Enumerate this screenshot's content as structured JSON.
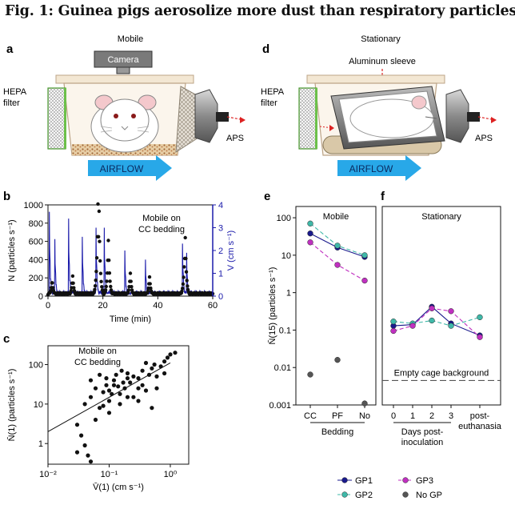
{
  "figure": {
    "title": "Fig. 1: Guinea pigs aerosolize more dust than respiratory particles."
  },
  "panel_a": {
    "letter": "a",
    "caption": "Mobile",
    "camera_label": "Camera",
    "filter_label_1": "HEPA",
    "filter_label_2": "filter",
    "aps_label": "APS",
    "airflow_label": "AIRFLOW"
  },
  "panel_d": {
    "letter": "d",
    "caption": "Stationary",
    "sleeve_label": "Aluminum sleeve",
    "filter_label_1": "HEPA",
    "filter_label_2": "filter",
    "aps_label": "APS",
    "airflow_label": "AIRFLOW"
  },
  "colors": {
    "black": "#111111",
    "blue": "#1a1aaa",
    "gp1": "#1a1a8c",
    "gp2": "#3fb8a8",
    "gp3": "#c030c0",
    "nogp": "#555555",
    "airflow": "#28a8e8",
    "hepa": "#6cc04a"
  },
  "chart_data": [
    {
      "panel": "b",
      "type": "line",
      "annotation_1": "Mobile on",
      "annotation_2": "CC bedding",
      "xlabel": "Time (min)",
      "ylabel_left": "N (particles s⁻¹)",
      "ylabel_right": "V (cm s⁻¹)",
      "xlim": [
        0,
        60
      ],
      "ylim_left": [
        0,
        1000
      ],
      "ylim_right": [
        0,
        4
      ],
      "x_ticks": [
        "0",
        "20",
        "40",
        "60"
      ],
      "y_ticks_left": [
        "0",
        "200",
        "400",
        "600",
        "800",
        "1000"
      ],
      "y_ticks_right": [
        "0",
        "1",
        "2",
        "3",
        "4"
      ],
      "series": [
        {
          "name": "N",
          "axis": "left",
          "color": "#111111",
          "peaks": [
            {
              "t": 18.2,
              "v": 1010
            },
            {
              "t": 18.6,
              "v": 930
            },
            {
              "t": 22.0,
              "v": 610
            },
            {
              "t": 1.5,
              "v": 180
            },
            {
              "t": 9.0,
              "v": 220
            },
            {
              "t": 30.0,
              "v": 250
            },
            {
              "t": 37.0,
              "v": 210
            },
            {
              "t": 50.0,
              "v": 640
            },
            {
              "t": 49.6,
              "v": 320
            }
          ]
        },
        {
          "name": "V",
          "axis": "right",
          "color": "#1a1aaa",
          "peaks": [
            {
              "t": 0.5,
              "v": 3.7
            },
            {
              "t": 2.5,
              "v": 2.5
            },
            {
              "t": 7.5,
              "v": 3.4
            },
            {
              "t": 12.5,
              "v": 2.6
            },
            {
              "t": 17.5,
              "v": 3.0
            },
            {
              "t": 20.5,
              "v": 3.0
            },
            {
              "t": 28.0,
              "v": 2.0
            },
            {
              "t": 35.5,
              "v": 1.6
            },
            {
              "t": 49.0,
              "v": 2.3
            },
            {
              "t": 50.5,
              "v": 1.9
            }
          ]
        }
      ]
    },
    {
      "panel": "c",
      "type": "scatter",
      "annotation_1": "Mobile on",
      "annotation_2": "CC bedding",
      "xlabel": "V̄(1) (cm s⁻¹)",
      "ylabel": "N̄(1) (particles s⁻¹)",
      "xscale": "log",
      "yscale": "log",
      "xlim": [
        0.01,
        2
      ],
      "ylim": [
        0.3,
        300
      ],
      "x_ticks": [
        "10⁻²",
        "10⁻¹",
        "10⁰"
      ],
      "y_ticks": [
        "1",
        "10",
        "100"
      ],
      "points": [
        [
          0.03,
          0.6
        ],
        [
          0.04,
          0.9
        ],
        [
          0.05,
          0.35
        ],
        [
          0.045,
          0.5
        ],
        [
          0.03,
          3
        ],
        [
          0.035,
          1.6
        ],
        [
          0.04,
          10
        ],
        [
          0.06,
          25
        ],
        [
          0.05,
          15
        ],
        [
          0.07,
          8
        ],
        [
          0.08,
          20
        ],
        [
          0.09,
          30
        ],
        [
          0.1,
          12
        ],
        [
          0.12,
          40
        ],
        [
          0.15,
          18
        ],
        [
          0.13,
          55
        ],
        [
          0.18,
          25
        ],
        [
          0.2,
          60
        ],
        [
          0.22,
          35
        ],
        [
          0.25,
          15
        ],
        [
          0.3,
          45
        ],
        [
          0.35,
          70
        ],
        [
          0.4,
          22
        ],
        [
          0.5,
          80
        ],
        [
          0.6,
          50
        ],
        [
          0.7,
          90
        ],
        [
          0.8,
          120
        ],
        [
          1.0,
          180
        ],
        [
          1.2,
          200
        ],
        [
          0.9,
          150
        ],
        [
          0.06,
          4
        ],
        [
          0.08,
          9
        ],
        [
          0.1,
          6
        ],
        [
          0.15,
          10
        ],
        [
          0.3,
          12
        ],
        [
          0.5,
          8
        ],
        [
          0.25,
          50
        ],
        [
          0.2,
          15
        ],
        [
          0.12,
          30
        ],
        [
          0.09,
          45
        ],
        [
          0.17,
          35
        ],
        [
          0.35,
          30
        ],
        [
          0.45,
          55
        ],
        [
          0.55,
          100
        ],
        [
          0.4,
          110
        ],
        [
          0.07,
          55
        ],
        [
          0.05,
          40
        ],
        [
          0.6,
          25
        ],
        [
          0.8,
          60
        ],
        [
          0.3,
          25
        ],
        [
          0.1,
          22
        ],
        [
          0.14,
          28
        ],
        [
          0.2,
          45
        ],
        [
          0.11,
          18
        ],
        [
          0.16,
          70
        ]
      ],
      "fit": {
        "x": [
          0.01,
          1.0
        ],
        "y": [
          2,
          110
        ]
      }
    },
    {
      "panel": "e",
      "type": "line",
      "title": "Mobile",
      "ylabel": "N̄(15) (particles s⁻¹)",
      "yscale": "log",
      "ylim": [
        0.001,
        200
      ],
      "y_ticks": [
        "0.001",
        "0.01",
        "0.1",
        "1",
        "10",
        "100"
      ],
      "categories": [
        "CC",
        "PF",
        "No"
      ],
      "group_label": "Bedding",
      "series": [
        {
          "name": "GP1",
          "values": [
            38,
            16,
            9
          ]
        },
        {
          "name": "GP2",
          "values": [
            70,
            18,
            10
          ]
        },
        {
          "name": "GP3",
          "values": [
            22,
            5.5,
            2.1
          ]
        },
        {
          "name": "No GP",
          "values": [
            0.0065,
            0.016,
            0.0011
          ]
        }
      ]
    },
    {
      "panel": "f",
      "type": "line",
      "title": "Stationary",
      "yscale": "log",
      "ylim": [
        0.001,
        200
      ],
      "categories": [
        "0",
        "1",
        "2",
        "3",
        "post-euthanasia"
      ],
      "post_label_1": "post-",
      "post_label_2": "euthanasia",
      "group_label_1": "Days post-",
      "group_label_2": "inoculation",
      "background_label": "Empty cage background",
      "background_value": 0.0045,
      "series": [
        {
          "name": "GP1",
          "values": [
            0.13,
            0.14,
            0.42,
            0.15,
            0.072
          ]
        },
        {
          "name": "GP2",
          "values": [
            0.17,
            0.15,
            0.18,
            0.13,
            0.22
          ]
        },
        {
          "name": "GP3",
          "values": [
            0.095,
            0.13,
            0.38,
            0.32,
            0.065
          ]
        }
      ]
    }
  ],
  "legend": {
    "items": [
      {
        "name": "GP1"
      },
      {
        "name": "GP2"
      },
      {
        "name": "GP3"
      },
      {
        "name": "No GP"
      }
    ]
  },
  "panel_letters": {
    "b": "b",
    "c": "c",
    "e": "e",
    "f": "f"
  }
}
